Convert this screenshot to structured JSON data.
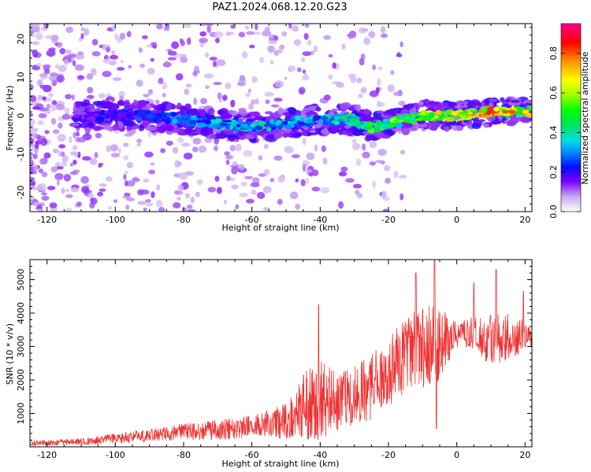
{
  "title": "PAZ1.2024.068.12.20.G23",
  "chart_data": [
    {
      "type": "heatmap",
      "xlabel": "Height of straight line (km)",
      "ylabel": "Frequency (Hz)",
      "xlim": [
        -125,
        22
      ],
      "ylim": [
        -25,
        24
      ],
      "xticks": [
        -120,
        -100,
        -80,
        -60,
        -40,
        -20,
        0,
        20
      ],
      "yticks": [
        -20,
        -10,
        0,
        10,
        20
      ],
      "ridge": {
        "x": [
          -110,
          -100,
          -90,
          -80,
          -70,
          -60,
          -50,
          -40,
          -30,
          -25,
          -20,
          -10,
          0,
          10,
          20
        ],
        "frequency": [
          0,
          0,
          0,
          -1,
          -2,
          -3,
          -2,
          -1,
          -1,
          -3,
          -2,
          0,
          0,
          1,
          1
        ],
        "amplitude": [
          0.2,
          0.25,
          0.3,
          0.35,
          0.4,
          0.45,
          0.4,
          0.4,
          0.5,
          0.6,
          0.6,
          0.7,
          0.75,
          0.85,
          0.8
        ]
      },
      "colorbar": {
        "label": "Normalized spectral amplitude",
        "range": [
          0,
          0.95
        ],
        "ticks": [
          "0.0",
          "0.2",
          "0.4",
          "0.6",
          "0.8"
        ]
      }
    },
    {
      "type": "line",
      "xlabel": "Height of straight line (km)",
      "ylabel": "SNR (10 * v/v)",
      "xlim": [
        -125,
        22
      ],
      "ylim": [
        0,
        5600
      ],
      "xticks": [
        -120,
        -100,
        -80,
        -60,
        -40,
        -20,
        0,
        20
      ],
      "yticks": [
        1000,
        2000,
        3000,
        4000,
        5000
      ],
      "color": "#ee3333",
      "envelope": {
        "x": [
          -125,
          -110,
          -100,
          -90,
          -80,
          -70,
          -60,
          -55,
          -50,
          -45,
          -40,
          -35,
          -30,
          -25,
          -20,
          -15,
          -10,
          -5,
          0,
          5,
          10,
          15,
          22
        ],
        "mean": [
          100,
          150,
          250,
          350,
          450,
          500,
          600,
          700,
          800,
          1200,
          1400,
          1300,
          1500,
          1800,
          2200,
          2800,
          3000,
          3100,
          3300,
          3400,
          3200,
          3300,
          3300
        ],
        "spread": [
          80,
          100,
          150,
          200,
          250,
          300,
          350,
          400,
          600,
          1000,
          1200,
          900,
          900,
          1000,
          1000,
          1200,
          1400,
          1200,
          400,
          500,
          800,
          700,
          400
        ]
      },
      "peaks": [
        {
          "x": -40.5,
          "y": 4250
        },
        {
          "x": -6.5,
          "y": 5750
        },
        {
          "x": -12,
          "y": 5200
        },
        {
          "x": 5,
          "y": 4900
        },
        {
          "x": 11.5,
          "y": 5300
        },
        {
          "x": 19.5,
          "y": 4650
        },
        {
          "x": -6,
          "y": 550
        }
      ]
    }
  ]
}
